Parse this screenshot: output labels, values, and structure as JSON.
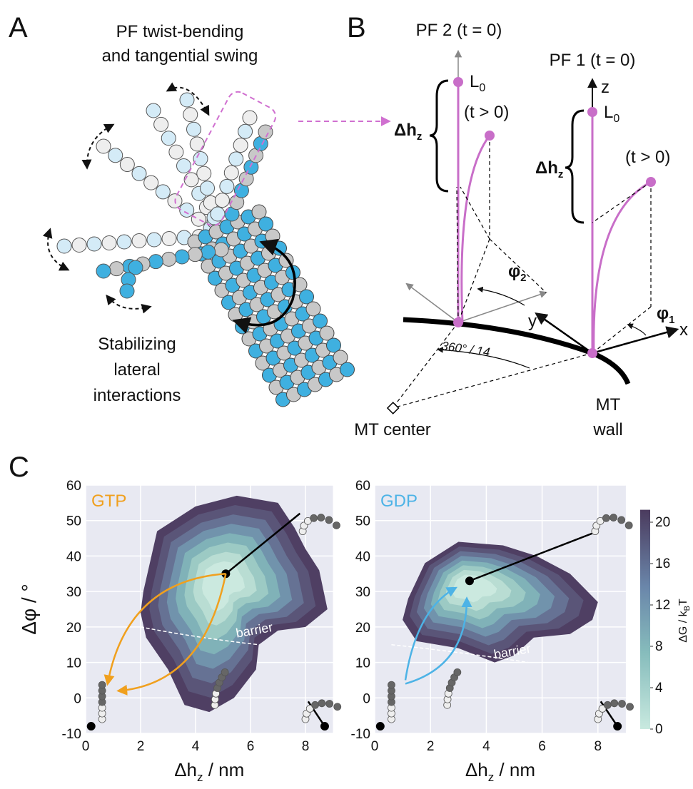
{
  "panel_a": {
    "label": "A",
    "title": [
      "PF twist-bending",
      "and tangential swing"
    ],
    "caption": [
      "Stabilizing",
      "lateral",
      "interactions"
    ]
  },
  "panel_b": {
    "label": "B",
    "pf2_title": "PF 2 (t = 0)",
    "pf1_title": "PF 1 (t = 0)",
    "l0": {
      "main": "L",
      "sub": "0"
    },
    "t_later": "(t > 0)",
    "dhz": {
      "main": "Δh",
      "sub": "z"
    },
    "phi2": {
      "main": "φ",
      "sub": "2"
    },
    "phi1": {
      "main": "φ",
      "sub": "1"
    },
    "axis_x": "x",
    "axis_y": "y",
    "axis_z": "z",
    "angle": "360° / 14",
    "mt_center": "MT center",
    "mt_wall": [
      "MT",
      "wall"
    ]
  },
  "panel_c": {
    "label": "C",
    "xlabel": {
      "main": "Δh",
      "sub": "z",
      "rest": " / nm"
    },
    "ylabel": "Δφ / °",
    "annotation": "barrier",
    "plots": [
      {
        "title": "GTP",
        "color": "#f0a01e"
      },
      {
        "title": "GDP",
        "color": "#4db3e6"
      }
    ],
    "xlim": [
      0,
      9
    ],
    "ylim": [
      -10,
      60
    ],
    "xticks": [
      0,
      2,
      4,
      6,
      8
    ],
    "yticks": [
      -10,
      0,
      10,
      20,
      30,
      40,
      50,
      60
    ],
    "colorbar": {
      "label": {
        "main": "ΔG / k",
        "sub": "B",
        "rest": "T"
      },
      "lim": [
        0,
        21.2
      ],
      "ticks": [
        0,
        4,
        8,
        12,
        16,
        20
      ]
    }
  }
}
